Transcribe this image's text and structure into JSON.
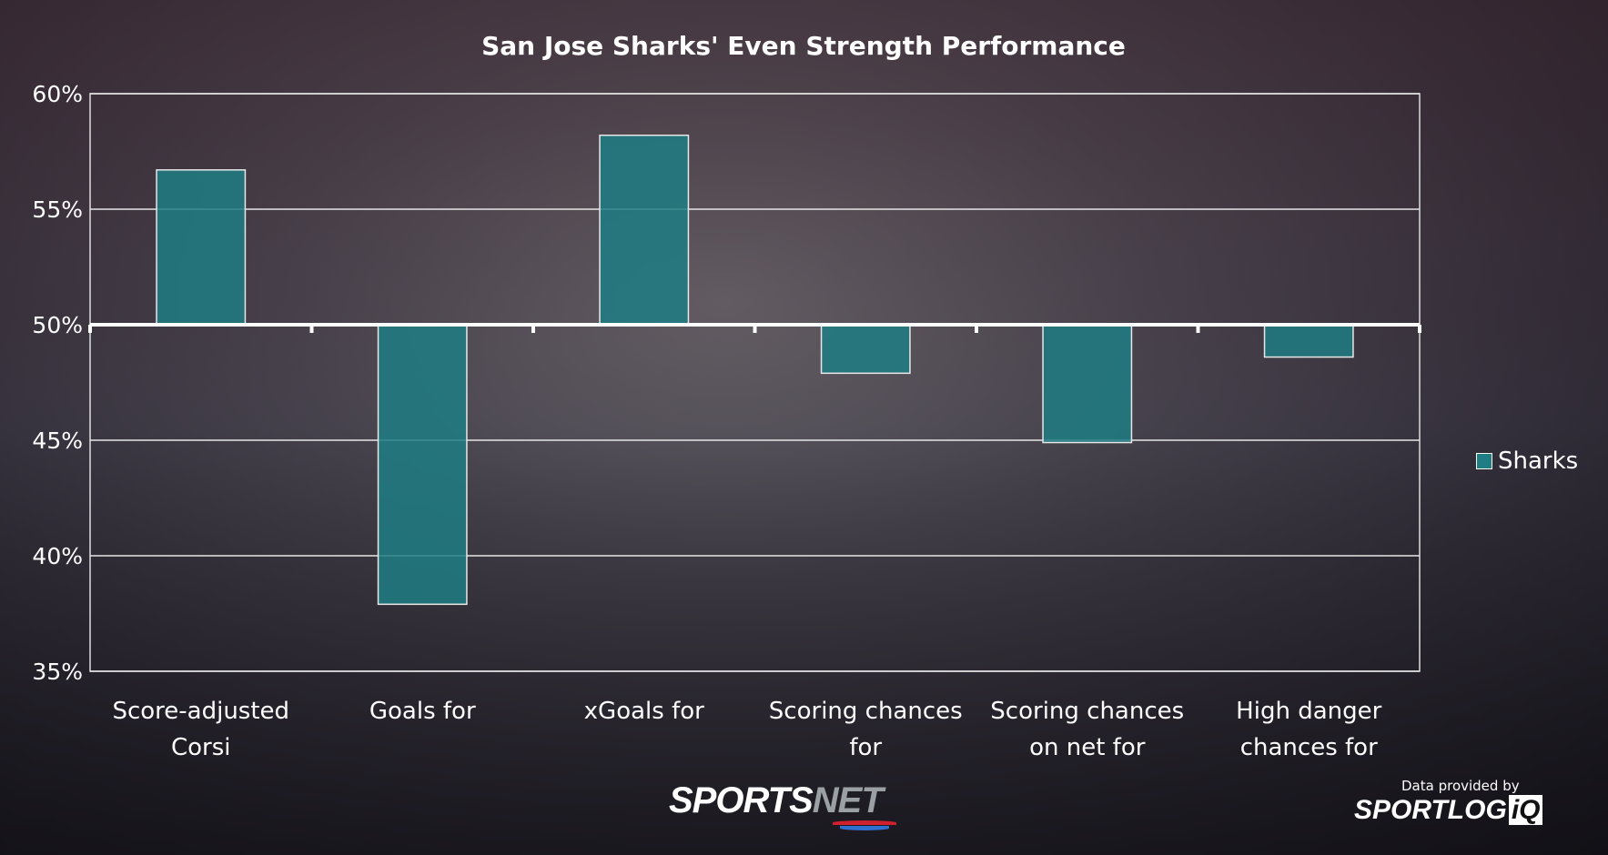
{
  "chart_data": {
    "type": "bar",
    "title": "San Jose Sharks' Even Strength Performance",
    "categories": [
      [
        "Score-adjusted",
        "Corsi"
      ],
      [
        "Goals for"
      ],
      [
        "xGoals for"
      ],
      [
        "Scoring chances",
        "for"
      ],
      [
        "Scoring chances",
        "on net for"
      ],
      [
        "High danger",
        "chances for"
      ]
    ],
    "series": [
      {
        "name": "Sharks",
        "values": [
          56.7,
          37.9,
          58.2,
          47.9,
          44.9,
          48.6
        ],
        "color": "#1f7d84"
      }
    ],
    "baseline": 50,
    "ylim": [
      35,
      60
    ],
    "yticks": [
      35,
      40,
      45,
      50,
      55,
      60
    ],
    "ytick_labels": [
      "35%",
      "40%",
      "45%",
      "50%",
      "55%",
      "60%"
    ],
    "grid": true,
    "legend_position": "right",
    "xlabel": "",
    "ylabel": ""
  },
  "branding": {
    "sportsnet_a": "SPORTS",
    "sportsnet_b": "NET",
    "data_provided_by": "Data provided by",
    "sportlogiq_a": "SPORTLOG",
    "sportlogiq_b": "iQ"
  }
}
